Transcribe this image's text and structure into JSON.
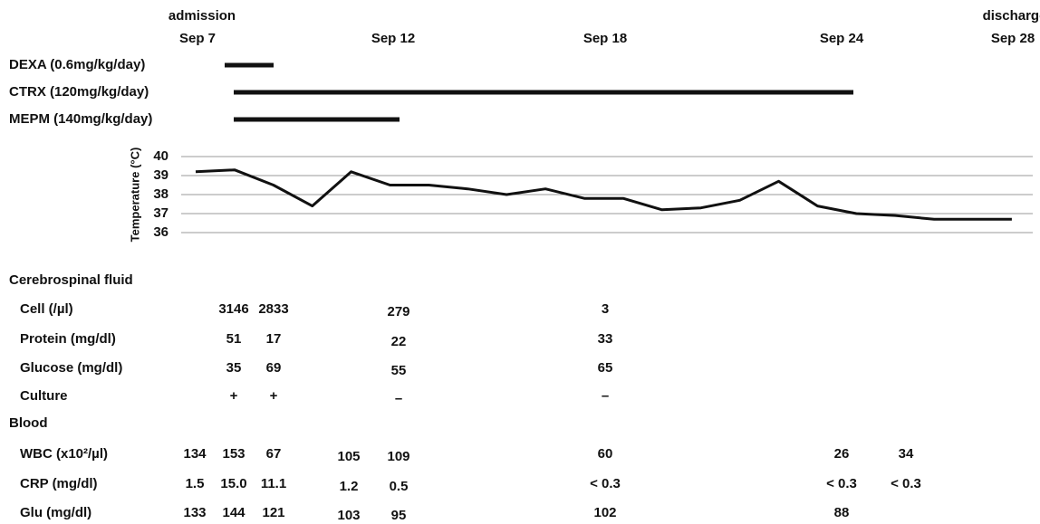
{
  "timeline": {
    "admission": "admission",
    "discharge": "discharge",
    "dates": [
      "Sep 7",
      "Sep 12",
      "Sep 18",
      "Sep 24",
      "Sep 28"
    ]
  },
  "drugs": [
    "DEXA (0.6mg/kg/day)",
    "CTRX (120mg/kg/day)",
    "MEPM (140mg/kg/day)"
  ],
  "chart_data": {
    "type": "line",
    "y_label": "Temperature (°C)",
    "color": "#111111",
    "grid": true,
    "ylim": [
      36,
      40
    ],
    "yticks": [
      36,
      37,
      38,
      39,
      40
    ],
    "values": [
      39.2,
      39.3,
      38.5,
      37.4,
      39.2,
      38.5,
      38.5,
      38.3,
      38.0,
      38.3,
      37.8,
      37.8,
      37.2,
      37.3,
      37.7,
      38.7,
      37.4,
      37.0,
      36.9,
      36.7,
      36.7,
      36.7
    ]
  },
  "csf": {
    "title": "Cerebrospinal fluid",
    "rows": [
      {
        "label": "Cell (/µl)",
        "cells": [
          null,
          "3146",
          "2833",
          null,
          "279",
          "3",
          null,
          null
        ]
      },
      {
        "label": "Protein  (mg/dl)",
        "cells": [
          null,
          "51",
          "17",
          null,
          "22",
          "33",
          null,
          null
        ]
      },
      {
        "label": "Glucose (mg/dl)",
        "cells": [
          null,
          "35",
          "69",
          null,
          "55",
          "65",
          null,
          null
        ]
      },
      {
        "label": "Culture",
        "cells": [
          null,
          "+",
          "+",
          null,
          "–",
          "–",
          null,
          null
        ]
      }
    ]
  },
  "blood": {
    "title": "Blood",
    "rows": [
      {
        "label": "WBC (x10²/µl)",
        "cells": [
          "134",
          "153",
          "67",
          "105",
          "109",
          "60",
          "26",
          "34"
        ]
      },
      {
        "label": "CRP (mg/dl)",
        "cells": [
          "1.5",
          "15.0",
          "11.1",
          "1.2",
          "0.5",
          "< 0.3",
          "< 0.3",
          "< 0.3"
        ]
      },
      {
        "label": "Glu (mg/dl)",
        "cells": [
          "133",
          "144",
          "121",
          "103",
          "95",
          "102",
          "88",
          null
        ]
      }
    ]
  }
}
